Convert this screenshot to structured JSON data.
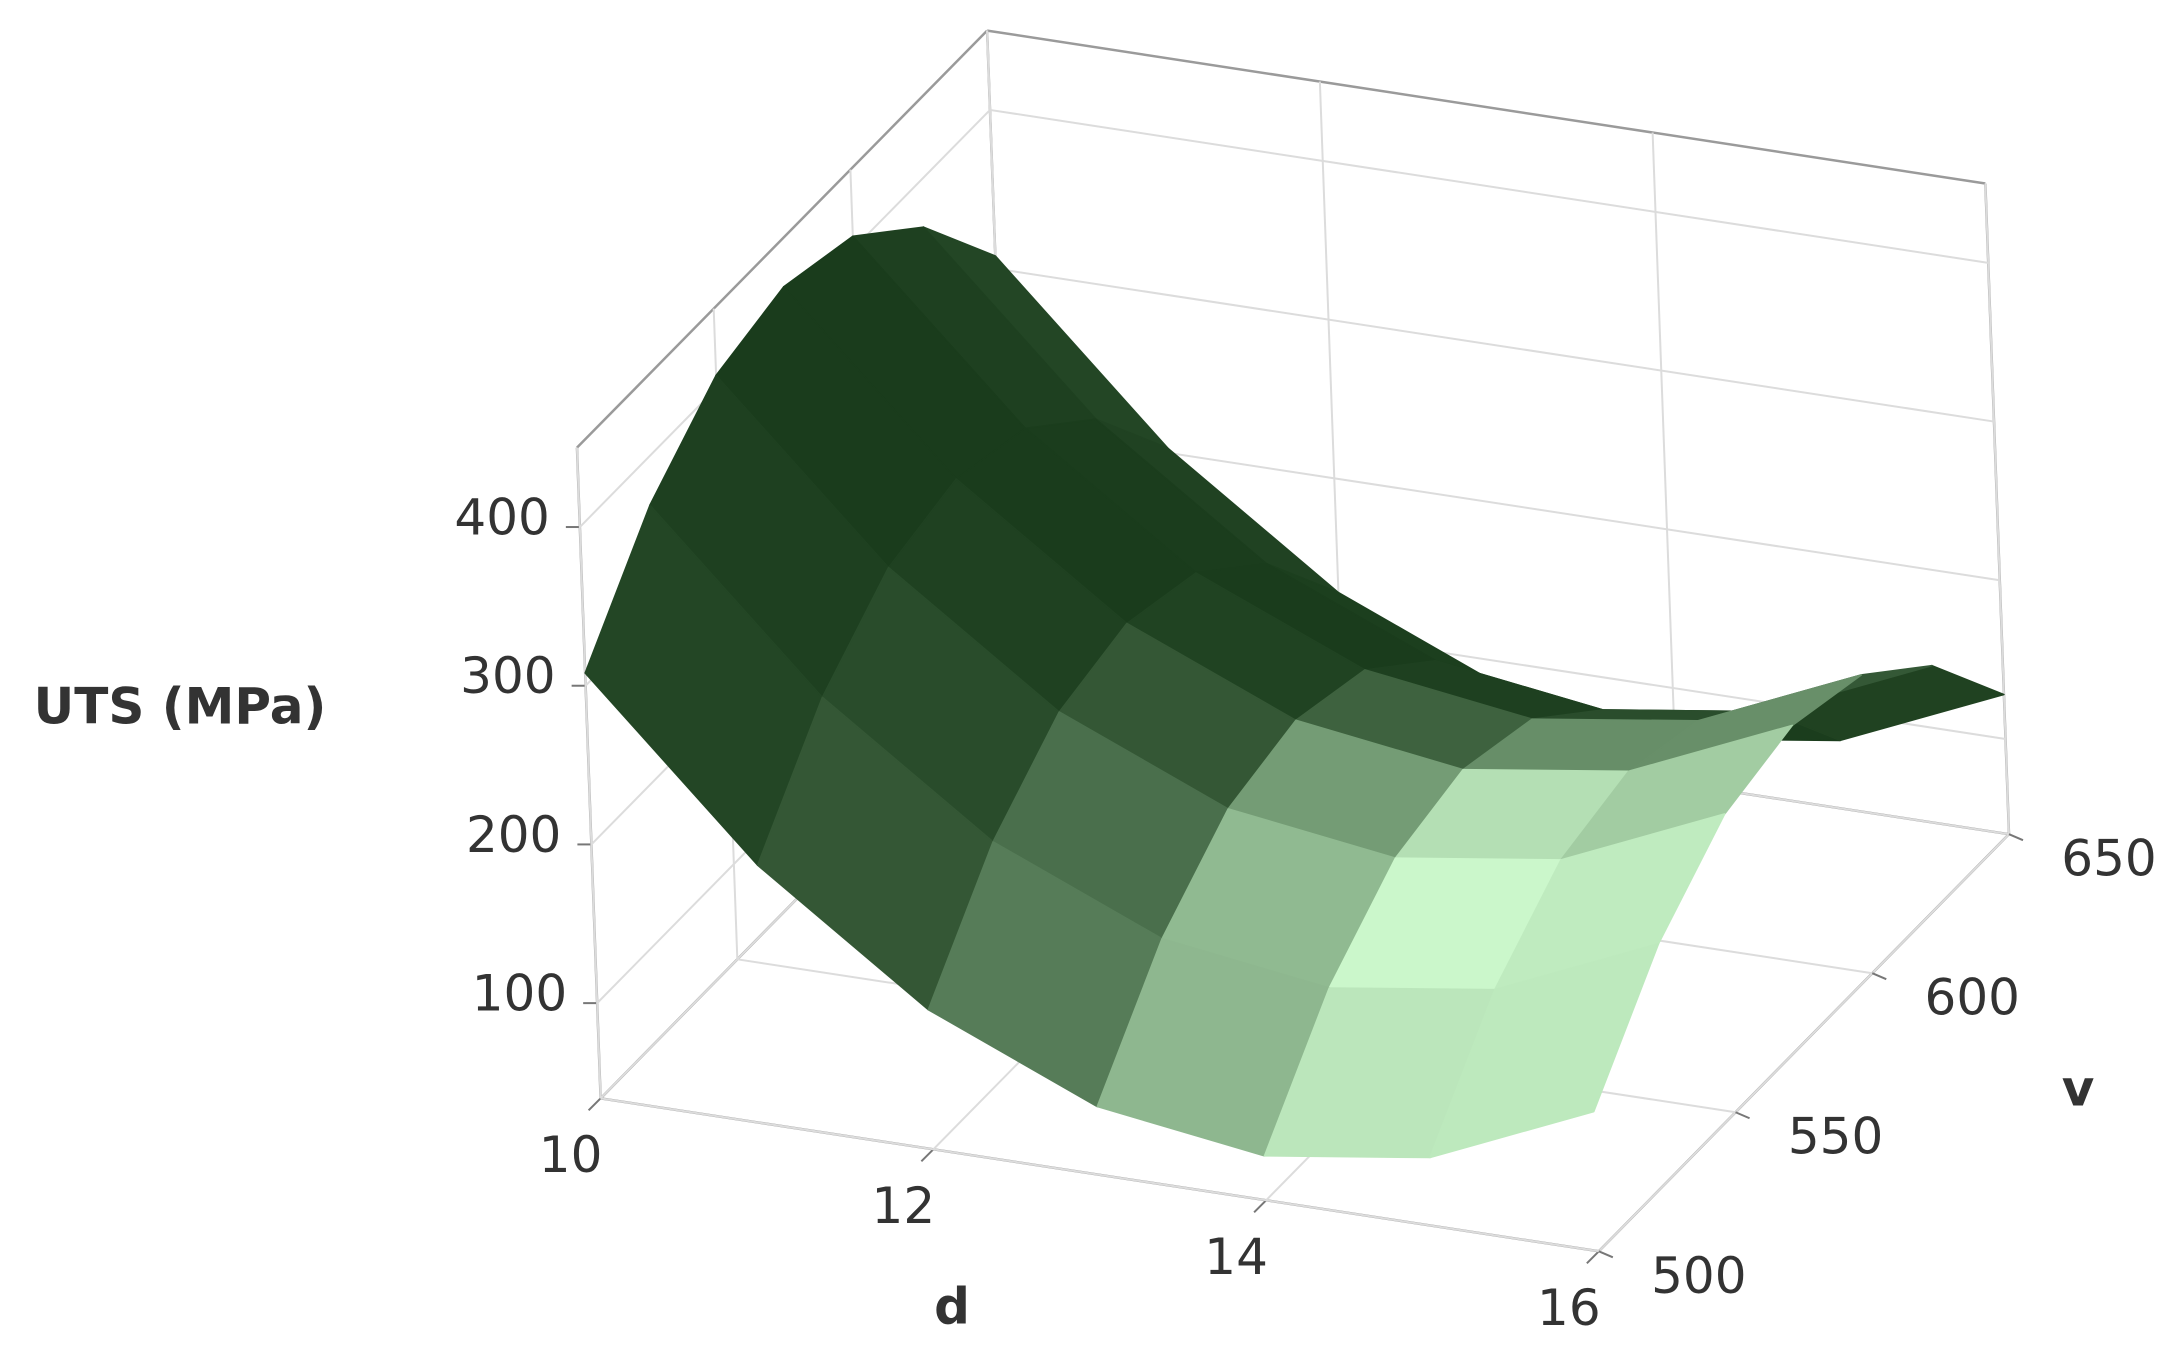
{
  "chart_data": {
    "type": "surface",
    "x_label": "d",
    "y_label": "v",
    "z_label": "UTS (MPa)",
    "x": [
      10,
      11,
      12,
      13,
      14,
      15,
      16
    ],
    "y": [
      500,
      525,
      550,
      575,
      600,
      625,
      650
    ],
    "z": [
      [
        308,
        370,
        408,
        420,
        408,
        370,
        308
      ],
      [
        203,
        265,
        303,
        315,
        303,
        265,
        203
      ],
      [
        128,
        190,
        228,
        240,
        228,
        190,
        128
      ],
      [
        83,
        145,
        183,
        195,
        183,
        145,
        83
      ],
      [
        68,
        130,
        168,
        180,
        168,
        130,
        68
      ],
      [
        83,
        145,
        183,
        195,
        183,
        145,
        83
      ],
      [
        128,
        190,
        228,
        240,
        228,
        190,
        128
      ]
    ],
    "xlim": [
      10,
      16
    ],
    "ylim": [
      500,
      650
    ],
    "zlim": [
      40,
      450
    ],
    "xticks": [
      10,
      12,
      14,
      16
    ],
    "yticks": [
      500,
      550,
      600,
      650
    ],
    "zticks": [
      100,
      200,
      300,
      400
    ],
    "color": "#5cb85c",
    "grid": true
  }
}
